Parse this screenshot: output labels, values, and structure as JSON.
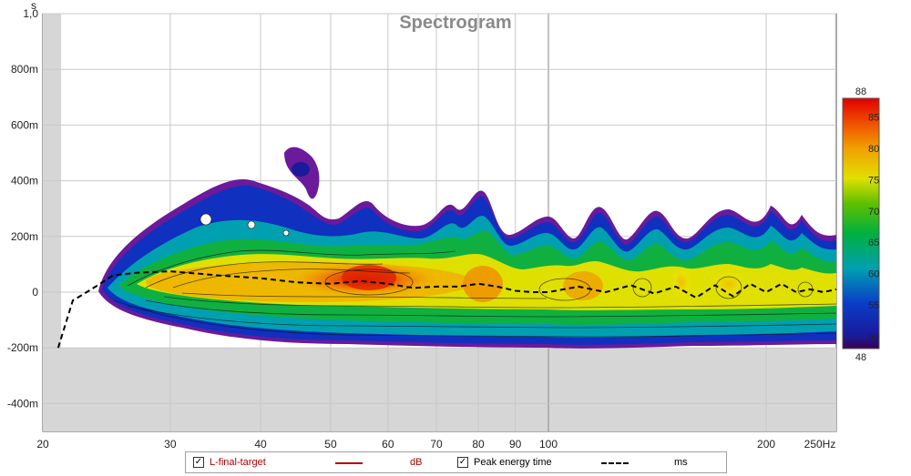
{
  "chart_data": {
    "type": "heatmap",
    "title": "Spectrogram",
    "xlabel": "Hz",
    "ylabel": "s",
    "x_scale": "log",
    "xlim": [
      20,
      250
    ],
    "x_ticks": [
      "20",
      "30",
      "40",
      "50",
      "60",
      "70",
      "80",
      "90",
      "100",
      "200",
      "250Hz"
    ],
    "ylim": [
      -0.5,
      1.0
    ],
    "y_ticks": [
      "1,0",
      "800m",
      "600m",
      "400m",
      "200m",
      "0",
      "-200m",
      "-400m"
    ],
    "colorbar": {
      "min": 48,
      "max": 88,
      "ticks": [
        "88",
        "85",
        "80",
        "75",
        "70",
        "65",
        "60",
        "55",
        "50",
        "48"
      ]
    },
    "series": [
      {
        "name": "Peak energy time",
        "unit": "ms",
        "x": [
          21,
          22,
          23,
          24,
          25,
          27,
          30,
          35,
          40,
          45,
          50,
          55,
          60,
          65,
          70,
          75,
          80,
          85,
          90,
          95,
          100,
          110,
          120,
          130,
          140,
          150,
          160,
          170,
          180,
          190,
          200,
          210,
          220,
          230,
          240,
          250
        ],
        "y": [
          -0.2,
          -0.03,
          0.0,
          0.03,
          0.06,
          0.07,
          0.075,
          0.06,
          0.05,
          0.035,
          0.03,
          0.04,
          0.03,
          0.015,
          0.02,
          0.02,
          0.03,
          0.02,
          0.005,
          0.0,
          0.0,
          0.02,
          0.0,
          0.025,
          -0.005,
          0.02,
          -0.02,
          0.025,
          -0.015,
          0.03,
          0.0,
          0.03,
          0.0,
          0.01,
          0.0,
          0.01
        ]
      }
    ]
  },
  "legend": {
    "items": [
      {
        "label": "L-final-target",
        "unit": "dB",
        "checked": "✓",
        "color": "#b00000"
      },
      {
        "label": "Peak energy time",
        "unit": "ms",
        "checked": "✓",
        "color": "#000000"
      }
    ]
  }
}
